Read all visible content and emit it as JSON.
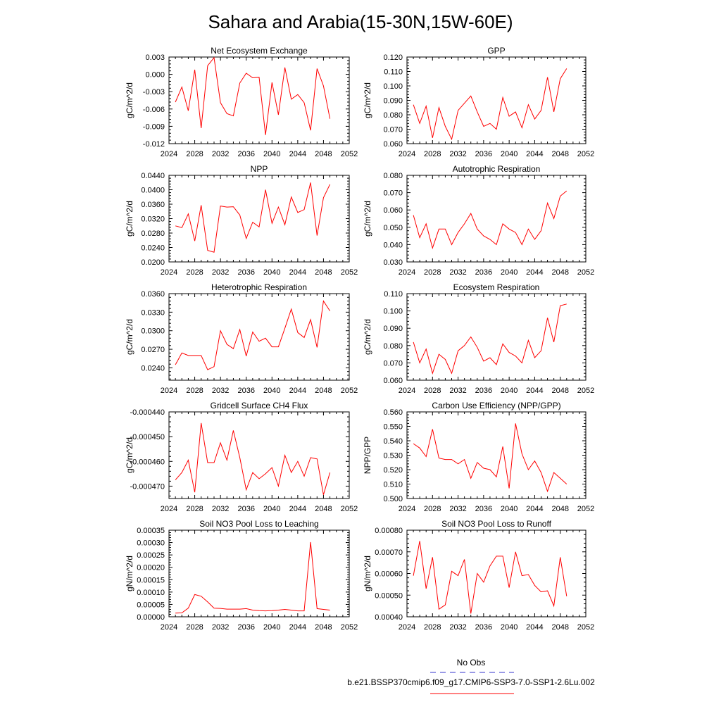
{
  "page_title": "Sahara and Arabia(15-30N,15W-60E)",
  "legend": {
    "entries": [
      {
        "label": "No Obs",
        "color": "#3333cc",
        "style": "dashed"
      },
      {
        "label": "b.e21.BSSP370cmip6.f09_g17.CMIP6-SSP3-7.0-SSP1-2.6Lu.002",
        "color": "#ff0000",
        "style": "solid"
      }
    ]
  },
  "chart_data": [
    {
      "type": "line",
      "title": "Net Ecosystem Exchange",
      "ylabel": "gC/m^2/d",
      "xlim": [
        2024,
        2052
      ],
      "ylim": [
        -0.012,
        0.003
      ],
      "xticks": [
        2024,
        2028,
        2032,
        2036,
        2040,
        2044,
        2048,
        2052
      ],
      "yticks": [
        -0.012,
        -0.009,
        -0.006,
        -0.003,
        0.0,
        0.003
      ],
      "ytick_labels": [
        "-0.012",
        "-0.009",
        "-0.006",
        "-0.003",
        "0.000",
        "0.003"
      ],
      "x": [
        2025,
        2026,
        2027,
        2028,
        2029,
        2030,
        2031,
        2032,
        2033,
        2034,
        2035,
        2036,
        2037,
        2038,
        2039,
        2040,
        2041,
        2042,
        2043,
        2044,
        2045,
        2046,
        2047,
        2048,
        2049
      ],
      "series": [
        {
          "values": [
            -0.0048,
            -0.0022,
            -0.0063,
            0.0008,
            -0.0093,
            0.0015,
            0.0029,
            -0.0049,
            -0.0068,
            -0.0072,
            -0.0015,
            0.0002,
            -0.0006,
            -0.0005,
            -0.0105,
            -0.0014,
            -0.007,
            0.0012,
            -0.0043,
            -0.0035,
            -0.0049,
            -0.0097,
            0.001,
            -0.002,
            -0.0077
          ],
          "color": "#ff0000"
        }
      ]
    },
    {
      "type": "line",
      "title": "GPP",
      "ylabel": "gC/m^2/d",
      "xlim": [
        2024,
        2052
      ],
      "ylim": [
        0.06,
        0.12
      ],
      "xticks": [
        2024,
        2028,
        2032,
        2036,
        2040,
        2044,
        2048,
        2052
      ],
      "yticks": [
        0.06,
        0.07,
        0.08,
        0.09,
        0.1,
        0.11,
        0.12
      ],
      "ytick_labels": [
        "0.060",
        "0.070",
        "0.080",
        "0.090",
        "0.100",
        "0.110",
        "0.120"
      ],
      "x": [
        2025,
        2026,
        2027,
        2028,
        2029,
        2030,
        2031,
        2032,
        2033,
        2034,
        2035,
        2036,
        2037,
        2038,
        2039,
        2040,
        2041,
        2042,
        2043,
        2044,
        2045,
        2046,
        2047,
        2048,
        2049
      ],
      "series": [
        {
          "values": [
            0.087,
            0.074,
            0.086,
            0.064,
            0.085,
            0.072,
            0.063,
            0.083,
            0.088,
            0.093,
            0.082,
            0.072,
            0.074,
            0.07,
            0.092,
            0.079,
            0.082,
            0.071,
            0.087,
            0.077,
            0.083,
            0.106,
            0.082,
            0.105,
            0.112
          ],
          "color": "#ff0000"
        }
      ]
    },
    {
      "type": "line",
      "title": "NPP",
      "ylabel": "gC/m^2/d",
      "xlim": [
        2024,
        2052
      ],
      "ylim": [
        0.02,
        0.044
      ],
      "xticks": [
        2024,
        2028,
        2032,
        2036,
        2040,
        2044,
        2048,
        2052
      ],
      "yticks": [
        0.02,
        0.024,
        0.028,
        0.032,
        0.036,
        0.04,
        0.044
      ],
      "ytick_labels": [
        "0.0200",
        "0.0240",
        "0.0280",
        "0.0320",
        "0.0360",
        "0.0400",
        "0.0440"
      ],
      "x": [
        2025,
        2026,
        2027,
        2028,
        2029,
        2030,
        2031,
        2032,
        2033,
        2034,
        2035,
        2036,
        2037,
        2038,
        2039,
        2040,
        2041,
        2042,
        2043,
        2044,
        2045,
        2046,
        2047,
        2048,
        2049
      ],
      "series": [
        {
          "values": [
            0.03,
            0.0295,
            0.0333,
            0.0258,
            0.0357,
            0.0232,
            0.0227,
            0.0355,
            0.0352,
            0.0353,
            0.033,
            0.0265,
            0.031,
            0.0297,
            0.04,
            0.0307,
            0.0352,
            0.0303,
            0.038,
            0.0337,
            0.0345,
            0.042,
            0.0273,
            0.0378,
            0.0415
          ],
          "color": "#ff0000"
        }
      ]
    },
    {
      "type": "line",
      "title": "Autotrophic Respiration",
      "ylabel": "gC/m^2/d",
      "xlim": [
        2024,
        2052
      ],
      "ylim": [
        0.03,
        0.08
      ],
      "xticks": [
        2024,
        2028,
        2032,
        2036,
        2040,
        2044,
        2048,
        2052
      ],
      "yticks": [
        0.03,
        0.04,
        0.05,
        0.06,
        0.07,
        0.08
      ],
      "ytick_labels": [
        "0.030",
        "0.040",
        "0.050",
        "0.060",
        "0.070",
        "0.080"
      ],
      "x": [
        2025,
        2026,
        2027,
        2028,
        2029,
        2030,
        2031,
        2032,
        2033,
        2034,
        2035,
        2036,
        2037,
        2038,
        2039,
        2040,
        2041,
        2042,
        2043,
        2044,
        2045,
        2046,
        2047,
        2048,
        2049
      ],
      "series": [
        {
          "values": [
            0.057,
            0.044,
            0.052,
            0.038,
            0.049,
            0.049,
            0.04,
            0.047,
            0.052,
            0.058,
            0.049,
            0.045,
            0.043,
            0.04,
            0.052,
            0.049,
            0.047,
            0.04,
            0.049,
            0.043,
            0.048,
            0.064,
            0.055,
            0.068,
            0.071
          ],
          "color": "#ff0000"
        }
      ]
    },
    {
      "type": "line",
      "title": "Heterotrophic Respiration",
      "ylabel": "gC/m^2/d",
      "xlim": [
        2024,
        2052
      ],
      "ylim": [
        0.022,
        0.036
      ],
      "xticks": [
        2024,
        2028,
        2032,
        2036,
        2040,
        2044,
        2048,
        2052
      ],
      "yticks": [
        0.024,
        0.027,
        0.03,
        0.033,
        0.036
      ],
      "ytick_labels": [
        "0.0240",
        "0.0270",
        "0.0300",
        "0.0330",
        "0.0360"
      ],
      "x": [
        2025,
        2026,
        2027,
        2028,
        2029,
        2030,
        2031,
        2032,
        2033,
        2034,
        2035,
        2036,
        2037,
        2038,
        2039,
        2040,
        2041,
        2042,
        2043,
        2044,
        2045,
        2046,
        2047,
        2048,
        2049
      ],
      "series": [
        {
          "values": [
            0.0245,
            0.0264,
            0.026,
            0.026,
            0.026,
            0.0237,
            0.0242,
            0.03,
            0.0278,
            0.0271,
            0.0302,
            0.0259,
            0.0298,
            0.0283,
            0.0288,
            0.0274,
            0.0274,
            0.0304,
            0.0335,
            0.0297,
            0.0289,
            0.0318,
            0.0273,
            0.0348,
            0.0332
          ],
          "color": "#ff0000"
        }
      ]
    },
    {
      "type": "line",
      "title": "Ecosystem Respiration",
      "ylabel": "gC/m^2/d",
      "xlim": [
        2024,
        2052
      ],
      "ylim": [
        0.06,
        0.11
      ],
      "xticks": [
        2024,
        2028,
        2032,
        2036,
        2040,
        2044,
        2048,
        2052
      ],
      "yticks": [
        0.06,
        0.07,
        0.08,
        0.09,
        0.1,
        0.11
      ],
      "ytick_labels": [
        "0.060",
        "0.070",
        "0.080",
        "0.090",
        "0.100",
        "0.110"
      ],
      "x": [
        2025,
        2026,
        2027,
        2028,
        2029,
        2030,
        2031,
        2032,
        2033,
        2034,
        2035,
        2036,
        2037,
        2038,
        2039,
        2040,
        2041,
        2042,
        2043,
        2044,
        2045,
        2046,
        2047,
        2048,
        2049
      ],
      "series": [
        {
          "values": [
            0.082,
            0.07,
            0.078,
            0.064,
            0.075,
            0.072,
            0.064,
            0.077,
            0.08,
            0.085,
            0.079,
            0.071,
            0.073,
            0.069,
            0.081,
            0.076,
            0.074,
            0.07,
            0.083,
            0.073,
            0.077,
            0.096,
            0.082,
            0.103,
            0.104
          ],
          "color": "#ff0000"
        }
      ]
    },
    {
      "type": "line",
      "title": "Gridcell Surface CH4 Flux",
      "ylabel": "gC/m^2/d",
      "xlim": [
        2024,
        2052
      ],
      "ylim": [
        -0.000475,
        -0.00044
      ],
      "xticks": [
        2024,
        2028,
        2032,
        2036,
        2040,
        2044,
        2048,
        2052
      ],
      "yticks": [
        -0.00047,
        -0.00046,
        -0.00045,
        -0.00044
      ],
      "ytick_labels": [
        "-0.000470",
        "-0.000460",
        "-0.000450",
        "-0.000440"
      ],
      "x": [
        2025,
        2026,
        2027,
        2028,
        2029,
        2030,
        2031,
        2032,
        2033,
        2034,
        2035,
        2036,
        2037,
        2038,
        2039,
        2040,
        2041,
        2042,
        2043,
        2044,
        2045,
        2046,
        2047,
        2048,
        2049
      ],
      "series": [
        {
          "values": [
            -0.0004675,
            -0.0004645,
            -0.0004595,
            -0.0004725,
            -0.0004445,
            -0.0004605,
            -0.0004605,
            -0.0004525,
            -0.0004595,
            -0.0004475,
            -0.0004585,
            -0.0004715,
            -0.0004645,
            -0.000467,
            -0.000465,
            -0.0004625,
            -0.00047,
            -0.0004575,
            -0.0004645,
            -0.00046,
            -0.000466,
            -0.0004585,
            -0.000459,
            -0.0004735,
            -0.0004645
          ],
          "color": "#ff0000"
        }
      ]
    },
    {
      "type": "line",
      "title": "Carbon Use Efficiency (NPP/GPP)",
      "ylabel": "NPP/GPP",
      "xlim": [
        2024,
        2052
      ],
      "ylim": [
        0.5,
        0.56
      ],
      "xticks": [
        2024,
        2028,
        2032,
        2036,
        2040,
        2044,
        2048,
        2052
      ],
      "yticks": [
        0.5,
        0.51,
        0.52,
        0.53,
        0.54,
        0.55,
        0.56
      ],
      "ytick_labels": [
        "0.500",
        "0.510",
        "0.520",
        "0.530",
        "0.540",
        "0.550",
        "0.560"
      ],
      "x": [
        2025,
        2026,
        2027,
        2028,
        2029,
        2030,
        2031,
        2032,
        2033,
        2034,
        2035,
        2036,
        2037,
        2038,
        2039,
        2040,
        2041,
        2042,
        2043,
        2044,
        2045,
        2046,
        2047,
        2048,
        2049
      ],
      "series": [
        {
          "values": [
            0.538,
            0.535,
            0.529,
            0.548,
            0.528,
            0.527,
            0.527,
            0.524,
            0.527,
            0.514,
            0.525,
            0.521,
            0.52,
            0.515,
            0.536,
            0.507,
            0.552,
            0.531,
            0.52,
            0.526,
            0.518,
            0.505,
            0.518,
            0.514,
            0.51
          ],
          "color": "#ff0000"
        }
      ]
    },
    {
      "type": "line",
      "title": "Soil NO3 Pool Loss to Leaching",
      "ylabel": "gN/m^2/d",
      "xlim": [
        2024,
        2052
      ],
      "ylim": [
        0.0,
        0.00035
      ],
      "xticks": [
        2024,
        2028,
        2032,
        2036,
        2040,
        2044,
        2048,
        2052
      ],
      "yticks": [
        0.0,
        5e-05,
        0.0001,
        0.00015,
        0.0002,
        0.00025,
        0.0003,
        0.00035
      ],
      "ytick_labels": [
        "0.00000",
        "0.00005",
        "0.00010",
        "0.00015",
        "0.00020",
        "0.00025",
        "0.00030",
        "0.00035"
      ],
      "x": [
        2025,
        2026,
        2027,
        2028,
        2029,
        2030,
        2031,
        2032,
        2033,
        2034,
        2035,
        2036,
        2037,
        2038,
        2039,
        2040,
        2041,
        2042,
        2043,
        2044,
        2045,
        2046,
        2047,
        2048,
        2049
      ],
      "series": [
        {
          "values": [
            1.5e-05,
            1.6e-05,
            3.5e-05,
            9e-05,
            8.3e-05,
            6e-05,
            3.5e-05,
            3.4e-05,
            3.1e-05,
            3.1e-05,
            3.1e-05,
            3.3e-05,
            2.7e-05,
            2.5e-05,
            2.4e-05,
            2.5e-05,
            2.7e-05,
            3e-05,
            2.7e-05,
            2.4e-05,
            2.4e-05,
            0.000302,
            3.3e-05,
            3e-05,
            2.7e-05
          ],
          "color": "#ff0000"
        }
      ]
    },
    {
      "type": "line",
      "title": "Soil NO3 Pool Loss to Runoff",
      "ylabel": "gN/m^2/d",
      "xlim": [
        2024,
        2052
      ],
      "ylim": [
        0.0004,
        0.0008
      ],
      "xticks": [
        2024,
        2028,
        2032,
        2036,
        2040,
        2044,
        2048,
        2052
      ],
      "yticks": [
        0.0004,
        0.0005,
        0.0006,
        0.0007,
        0.0008
      ],
      "ytick_labels": [
        "0.00040",
        "0.00050",
        "0.00060",
        "0.00070",
        "0.00080"
      ],
      "x": [
        2025,
        2026,
        2027,
        2028,
        2029,
        2030,
        2031,
        2032,
        2033,
        2034,
        2035,
        2036,
        2037,
        2038,
        2039,
        2040,
        2041,
        2042,
        2043,
        2044,
        2045,
        2046,
        2047,
        2048,
        2049
      ],
      "series": [
        {
          "values": [
            0.00059,
            0.00075,
            0.00053,
            0.000675,
            0.000435,
            0.000455,
            0.00061,
            0.00059,
            0.000665,
            0.000415,
            0.0006,
            0.00056,
            0.000635,
            0.00068,
            0.00068,
            0.000535,
            0.0007,
            0.00059,
            0.000595,
            0.000545,
            0.000515,
            0.00052,
            0.00045,
            0.000675,
            0.000495
          ],
          "color": "#ff0000"
        }
      ]
    }
  ]
}
